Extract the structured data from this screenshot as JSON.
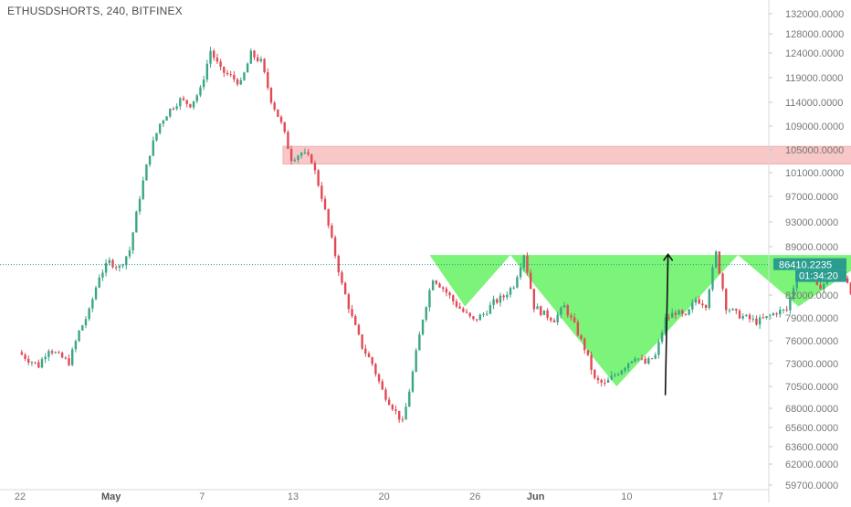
{
  "header": {
    "title": "ETHUSDSHORTS, 240, BITFINEX"
  },
  "colors": {
    "up": "#3aa687",
    "down": "#e14a55",
    "pattern_fill": "#6ef26a",
    "zone_fill": "#f4b6b4",
    "price_line": "#2a9d8f",
    "arrow": "#111111",
    "axis_text": "#777777"
  },
  "chart_data": {
    "type": "candlestick",
    "symbol": "ETHUSDSHORTS",
    "interval": "240",
    "exchange": "BITFINEX",
    "x_labels": [
      "22",
      "May",
      "7",
      "13",
      "20",
      "26",
      "Jun",
      "10",
      "17"
    ],
    "y_ticks": [
      "132000.0000",
      "128000.0000",
      "124000.0000",
      "119000.0000",
      "114000.0000",
      "109000.0000",
      "105000.0000",
      "101000.0000",
      "97000.0000",
      "93000.0000",
      "89000.0000",
      "82000.0000",
      "79000.0000",
      "76000.0000",
      "73000.0000",
      "70500.0000",
      "68000.0000",
      "65600.0000",
      "63600.0000",
      "62000.0000",
      "59700.0000"
    ],
    "y_tick_value_list": [
      132000,
      128000,
      124000,
      119000,
      114000,
      109000,
      105000,
      101000,
      97000,
      93000,
      89000,
      82000,
      79000,
      76000,
      73000,
      70500,
      68000,
      65600,
      63600,
      62000,
      59700
    ],
    "last_price": {
      "label": "86410.2235",
      "value": 86410.2235
    },
    "countdown": "01:34:20",
    "x_date_index": {
      "22": 0,
      "May": 9,
      "7": 18,
      "13": 27,
      "20": 36,
      "26": 45,
      "Jun": 51,
      "10": 60,
      "17": 69
    },
    "price_path": [
      [
        0,
        74500
      ],
      [
        1,
        73500
      ],
      [
        2,
        72800
      ],
      [
        3,
        75000
      ],
      [
        4,
        74000
      ],
      [
        5,
        73200
      ],
      [
        6,
        77200
      ],
      [
        7,
        79800
      ],
      [
        8,
        84800
      ],
      [
        9,
        86800
      ],
      [
        10,
        86000
      ],
      [
        11,
        88500
      ],
      [
        12,
        97000
      ],
      [
        13,
        104500
      ],
      [
        14,
        109500
      ],
      [
        15,
        112500
      ],
      [
        16,
        114500
      ],
      [
        17,
        113500
      ],
      [
        18,
        116500
      ],
      [
        19,
        124500
      ],
      [
        20,
        120500
      ],
      [
        21,
        119200
      ],
      [
        22,
        117800
      ],
      [
        23,
        123800
      ],
      [
        24,
        122200
      ],
      [
        25,
        114500
      ],
      [
        26,
        109500
      ],
      [
        27,
        103500
      ],
      [
        28,
        104500
      ],
      [
        29,
        103200
      ],
      [
        30,
        97000
      ],
      [
        31,
        90000
      ],
      [
        32,
        83500
      ],
      [
        33,
        79000
      ],
      [
        34,
        75200
      ],
      [
        35,
        73000
      ],
      [
        36,
        70000
      ],
      [
        37,
        68200
      ],
      [
        38,
        66200
      ],
      [
        39,
        72000
      ],
      [
        40,
        79000
      ],
      [
        41,
        84500
      ],
      [
        42,
        83000
      ],
      [
        43,
        81200
      ],
      [
        44,
        79800
      ],
      [
        45,
        78600
      ],
      [
        46,
        79500
      ],
      [
        47,
        81000
      ],
      [
        48,
        81800
      ],
      [
        49,
        83500
      ],
      [
        50,
        88000
      ],
      [
        51,
        80500
      ],
      [
        52,
        79500
      ],
      [
        53,
        78800
      ],
      [
        54,
        80500
      ],
      [
        55,
        78000
      ],
      [
        56,
        75000
      ],
      [
        57,
        71200
      ],
      [
        58,
        70700
      ],
      [
        59,
        71800
      ],
      [
        60,
        72800
      ],
      [
        61,
        74000
      ],
      [
        62,
        73000
      ],
      [
        63,
        74000
      ],
      [
        64,
        78800
      ],
      [
        65,
        79800
      ],
      [
        66,
        79000
      ],
      [
        67,
        81500
      ],
      [
        68,
        80800
      ],
      [
        69,
        88000
      ],
      [
        70,
        80500
      ],
      [
        71,
        79500
      ],
      [
        72,
        79000
      ],
      [
        73,
        78500
      ],
      [
        74,
        79000
      ],
      [
        75,
        79800
      ],
      [
        76,
        80000
      ],
      [
        77,
        84800
      ],
      [
        78,
        86500
      ],
      [
        79,
        83000
      ],
      [
        80,
        84000
      ],
      [
        81,
        86200
      ],
      [
        82,
        84000
      ],
      [
        83,
        79900
      ],
      [
        84,
        86000
      ],
      [
        85,
        86410
      ]
    ],
    "resistance_zone": {
      "from": 102500,
      "to": 105600,
      "start_index": 26,
      "end_index": 85
    },
    "pattern": {
      "neckline": 87800,
      "left_shoulder": {
        "start_index": 40.5,
        "trough_index": 44,
        "trough_value": 80500,
        "end_index": 48.5
      },
      "head": {
        "start_index": 48.5,
        "trough_index": 59,
        "trough_value": 70500,
        "end_index": 71
      },
      "right_shoulder": {
        "start_index": 71,
        "trough_index": 77,
        "trough_value": 80500,
        "end_index": 84.5
      }
    },
    "arrows": [
      {
        "from_index": 64,
        "from_value": 69500,
        "to_value": 87900
      },
      {
        "from_index": 84,
        "from_value": 88600,
        "to_value": 107200
      }
    ],
    "grid": false,
    "legend": "none"
  }
}
